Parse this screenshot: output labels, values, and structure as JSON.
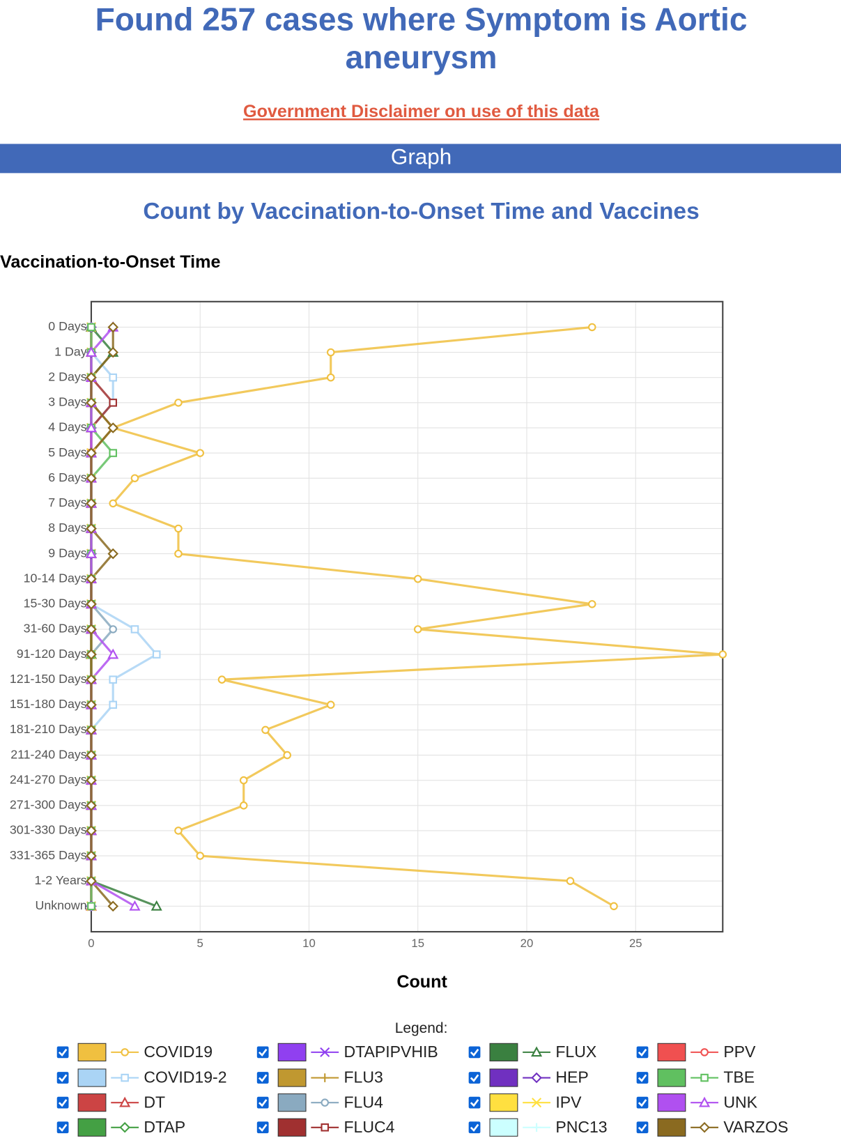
{
  "header": {
    "title": "Found 257 cases where Symptom is Aortic aneurysm",
    "disclaimer": "Government Disclaimer on use of this data",
    "section": "Graph"
  },
  "chart_data": {
    "type": "line",
    "orientation": "horizontal",
    "title": "Count by Vaccination-to-Onset Time and Vaccines",
    "y_label": "Vaccination-to-Onset Time",
    "x_label": "Count",
    "legend_title": "Legend:",
    "categories": [
      "0 Days",
      "1 Day",
      "2 Days",
      "3 Days",
      "4 Days",
      "5 Days",
      "6 Days",
      "7 Days",
      "8 Days",
      "9 Days",
      "10-14 Days",
      "15-30 Days",
      "31-60 Days",
      "91-120 Days",
      "121-150 Days",
      "151-180 Days",
      "181-210 Days",
      "211-240 Days",
      "241-270 Days",
      "271-300 Days",
      "301-330 Days",
      "331-365 Days",
      "1-2 Years",
      "Unknown"
    ],
    "xlim": [
      0,
      29
    ],
    "xticks": [
      0,
      5,
      10,
      15,
      20,
      25
    ],
    "grid": true,
    "series": [
      {
        "name": "COVID19",
        "color": "#f0c040",
        "marker": "circle",
        "values": [
          23,
          11,
          11,
          4,
          1,
          5,
          2,
          1,
          4,
          4,
          15,
          23,
          15,
          29,
          6,
          11,
          8,
          9,
          7,
          7,
          4,
          5,
          22,
          24
        ]
      },
      {
        "name": "COVID19-2",
        "color": "#aad4f5",
        "marker": "square",
        "values": [
          0,
          0,
          1,
          1,
          0,
          0,
          0,
          0,
          0,
          0,
          0,
          0,
          2,
          3,
          1,
          1,
          0,
          0,
          0,
          0,
          0,
          0,
          0,
          0
        ]
      },
      {
        "name": "DT",
        "color": "#cc4444",
        "marker": "triangle",
        "values": [
          0,
          0,
          0,
          0,
          0,
          0,
          0,
          0,
          0,
          0,
          0,
          0,
          0,
          0,
          0,
          0,
          0,
          0,
          0,
          0,
          0,
          0,
          0,
          0
        ]
      },
      {
        "name": "DTAP",
        "color": "#44a044",
        "marker": "diamond",
        "values": [
          0,
          0,
          0,
          0,
          0,
          0,
          0,
          0,
          0,
          0,
          0,
          0,
          0,
          0,
          0,
          0,
          0,
          0,
          0,
          0,
          0,
          0,
          0,
          0
        ]
      },
      {
        "name": "DTAPIPVHIB",
        "color": "#9040f0",
        "marker": "cross",
        "values": [
          0,
          0,
          0,
          0,
          0,
          0,
          0,
          0,
          0,
          0,
          0,
          0,
          0,
          0,
          0,
          0,
          0,
          0,
          0,
          0,
          0,
          0,
          0,
          0
        ]
      },
      {
        "name": "FLU3",
        "color": "#c09830",
        "marker": "plus",
        "values": [
          0,
          0,
          0,
          0,
          1,
          0,
          0,
          0,
          0,
          0,
          0,
          0,
          0,
          0,
          0,
          0,
          0,
          0,
          0,
          0,
          0,
          0,
          0,
          0
        ]
      },
      {
        "name": "FLU4",
        "color": "#8aaac0",
        "marker": "circle",
        "values": [
          0,
          0,
          0,
          0,
          0,
          0,
          0,
          0,
          0,
          0,
          0,
          0,
          1,
          0,
          0,
          0,
          0,
          0,
          0,
          0,
          0,
          0,
          0,
          0
        ]
      },
      {
        "name": "FLUC4",
        "color": "#a03030",
        "marker": "square",
        "values": [
          0,
          0,
          0,
          1,
          0,
          0,
          0,
          0,
          0,
          0,
          0,
          0,
          0,
          0,
          0,
          0,
          0,
          0,
          0,
          0,
          0,
          0,
          0,
          0
        ]
      },
      {
        "name": "FLUX",
        "color": "#3a8040",
        "marker": "triangle",
        "values": [
          0,
          1,
          0,
          0,
          0,
          0,
          0,
          0,
          0,
          0,
          0,
          0,
          0,
          0,
          0,
          0,
          0,
          0,
          0,
          0,
          0,
          0,
          0,
          3
        ]
      },
      {
        "name": "HEP",
        "color": "#7030c0",
        "marker": "diamond",
        "values": [
          0,
          0,
          0,
          0,
          0,
          0,
          0,
          0,
          0,
          0,
          0,
          0,
          0,
          0,
          0,
          0,
          0,
          0,
          0,
          0,
          0,
          0,
          0,
          0
        ]
      },
      {
        "name": "IPV",
        "color": "#ffe040",
        "marker": "cross",
        "values": [
          0,
          0,
          0,
          0,
          0,
          0,
          0,
          0,
          0,
          0,
          0,
          0,
          0,
          0,
          0,
          0,
          0,
          0,
          0,
          0,
          0,
          0,
          0,
          0
        ]
      },
      {
        "name": "PNC13",
        "color": "#ccffff",
        "marker": "plus",
        "values": [
          0,
          0,
          0,
          0,
          0,
          0,
          0,
          0,
          0,
          0,
          0,
          0,
          0,
          0,
          0,
          0,
          0,
          0,
          0,
          0,
          0,
          0,
          0,
          0
        ]
      },
      {
        "name": "PPV",
        "color": "#f05050",
        "marker": "circle",
        "values": [
          0,
          0,
          0,
          0,
          0,
          0,
          0,
          0,
          0,
          0,
          0,
          0,
          0,
          0,
          0,
          0,
          0,
          0,
          0,
          0,
          0,
          0,
          0,
          0
        ]
      },
      {
        "name": "TBE",
        "color": "#60c060",
        "marker": "square",
        "values": [
          0,
          0,
          0,
          0,
          0,
          1,
          0,
          0,
          0,
          0,
          0,
          0,
          0,
          0,
          0,
          0,
          0,
          0,
          0,
          0,
          0,
          0,
          0,
          0
        ]
      },
      {
        "name": "UNK",
        "color": "#b050f0",
        "marker": "triangle",
        "values": [
          1,
          0,
          0,
          0,
          0,
          0,
          0,
          0,
          0,
          0,
          0,
          0,
          0,
          1,
          0,
          0,
          0,
          0,
          0,
          0,
          0,
          0,
          0,
          2
        ]
      },
      {
        "name": "VARZOS",
        "color": "#8a6a20",
        "marker": "diamond",
        "values": [
          1,
          1,
          0,
          0,
          1,
          0,
          0,
          0,
          0,
          1,
          0,
          0,
          0,
          0,
          0,
          0,
          0,
          0,
          0,
          0,
          0,
          0,
          0,
          1
        ]
      }
    ]
  }
}
